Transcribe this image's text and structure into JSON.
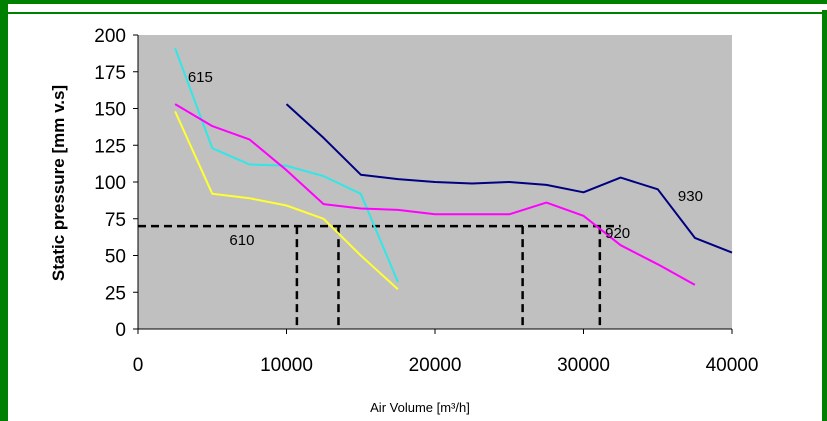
{
  "chart_data": {
    "type": "line",
    "title": "",
    "xlabel": "Air Volume [m³/h]",
    "ylabel": "Static pressure [mm v.s]",
    "xlim": [
      0,
      40000
    ],
    "ylim": [
      0,
      200
    ],
    "xticks": [
      0,
      10000,
      20000,
      30000,
      40000
    ],
    "yticks": [
      0,
      25,
      50,
      75,
      100,
      125,
      150,
      175,
      200
    ],
    "grid": false,
    "plot_background": "#c0c0c0",
    "frame_color": "#008000",
    "series": [
      {
        "name": "615",
        "color": "#33e6e6",
        "x": [
          2500,
          5000,
          7500,
          10000,
          12500,
          15000,
          17500
        ],
        "y": [
          191,
          123,
          112,
          111,
          104,
          92,
          32
        ]
      },
      {
        "name": "610",
        "color": "#ffff33",
        "x": [
          2500,
          5000,
          7500,
          10000,
          12500,
          15000,
          17500
        ],
        "y": [
          148,
          92,
          89,
          84,
          75,
          50,
          27
        ]
      },
      {
        "name": "920",
        "color": "#ff00ff",
        "x": [
          2500,
          5000,
          7500,
          10000,
          12500,
          15000,
          17500,
          20000,
          22500,
          25000,
          27500,
          30000,
          32500,
          35000,
          37500
        ],
        "y": [
          153,
          138,
          129,
          108,
          85,
          82,
          81,
          78,
          78,
          78,
          86,
          77,
          57,
          44,
          30
        ]
      },
      {
        "name": "930",
        "color": "#000080",
        "x": [
          10000,
          12500,
          15000,
          17500,
          20000,
          22500,
          25000,
          27500,
          30000,
          32500,
          35000,
          37500,
          40000
        ],
        "y": [
          153,
          130,
          105,
          102,
          100,
          99,
          100,
          98,
          93,
          103,
          95,
          62,
          52
        ]
      }
    ],
    "annotations": {
      "dashed_level_y": 70,
      "dashed_level_x_range": [
        0,
        32500
      ],
      "dashed_verticals_x": [
        10700,
        13500,
        25900,
        31100
      ]
    },
    "series_label_positions_data": [
      {
        "text": "615",
        "x": 4200,
        "y": 168
      },
      {
        "text": "610",
        "x": 7000,
        "y": 57
      },
      {
        "text": "920",
        "x": 32300,
        "y": 62
      },
      {
        "text": "930",
        "x": 37200,
        "y": 87
      }
    ]
  }
}
